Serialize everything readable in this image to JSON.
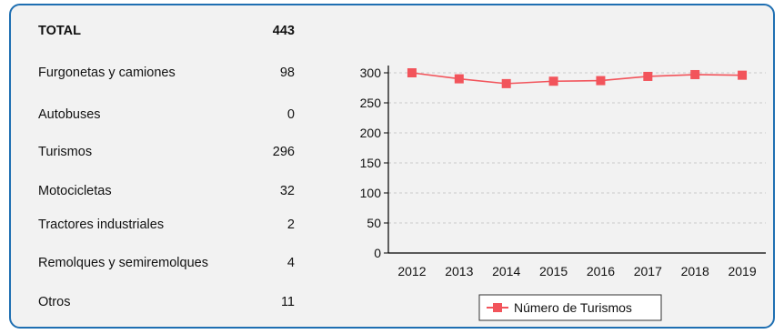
{
  "stats": [
    {
      "label": "TOTAL",
      "value": "443"
    },
    {
      "label": "Furgonetas y camiones",
      "value": "98"
    },
    {
      "label": "Autobuses",
      "value": "0"
    },
    {
      "label": "Turismos",
      "value": "296"
    },
    {
      "label": "Motocicletas",
      "value": "32"
    },
    {
      "label": "Tractores industriales",
      "value": "2"
    },
    {
      "label": "Remolques y semiremolques",
      "value": "4"
    },
    {
      "label": "Otros",
      "value": "11"
    }
  ],
  "chart_data": {
    "type": "line",
    "categories": [
      "2012",
      "2013",
      "2014",
      "2015",
      "2016",
      "2017",
      "2018",
      "2019"
    ],
    "series": [
      {
        "name": "Número de Turismos",
        "values": [
          300,
          290,
          282,
          286,
          287,
          294,
          297,
          296
        ],
        "color": "#f2545b"
      }
    ],
    "ylim": [
      0,
      300
    ],
    "yticks": [
      0,
      50,
      100,
      150,
      200,
      250,
      300
    ],
    "grid": true,
    "legend": "bottom-center"
  }
}
